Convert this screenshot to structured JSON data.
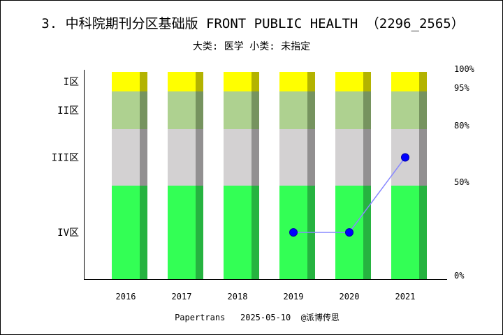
{
  "chart_data": {
    "type": "bar",
    "title": "3. 中科院期刊分区基础版 FRONT PUBLIC HEALTH （2296_2565）",
    "subtitle": "大类: 医学 小类: 未指定",
    "categories": [
      "2016",
      "2017",
      "2018",
      "2019",
      "2020",
      "2021"
    ],
    "zones": [
      {
        "name": "IV区",
        "from": 0,
        "to": 50,
        "color": "#33ff55",
        "shade": "#26b340"
      },
      {
        "name": "III区",
        "from": 50,
        "to": 80,
        "color": "#d3d1d2",
        "shade": "#929091"
      },
      {
        "name": "II区",
        "from": 80,
        "to": 95,
        "color": "#aed190",
        "shade": "#76935f"
      },
      {
        "name": "I区",
        "from": 95,
        "to": 100,
        "color": "#ffff00",
        "shade": "#b3b300"
      }
    ],
    "right_ticks": [
      "0%",
      "50%",
      "80%",
      "95%",
      "100%"
    ],
    "right_tick_values": [
      0,
      50,
      80,
      95,
      100
    ],
    "line_series": {
      "x": [
        "2019",
        "2020",
        "2021"
      ],
      "values": [
        25,
        25,
        65
      ],
      "color": "#0000ff",
      "line_color": "#8888ff"
    },
    "ylim": [
      0,
      100
    ],
    "grid": false
  },
  "footer": "Papertrans   2025-05-10  @派博传思"
}
